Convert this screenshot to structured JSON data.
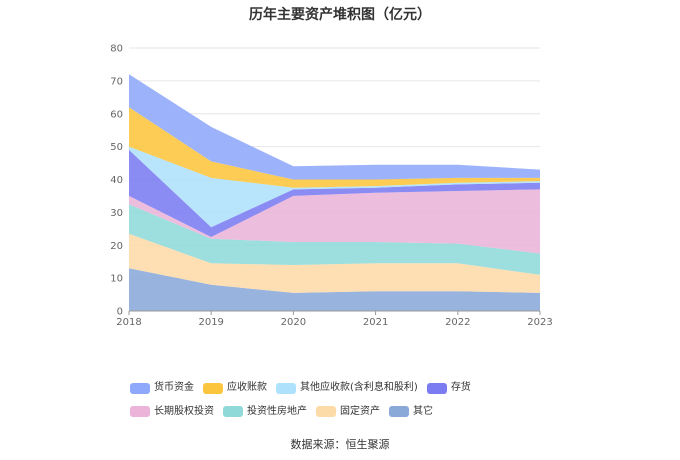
{
  "chart_data": {
    "type": "area",
    "stacked": true,
    "title": "历年主要资产堆积图（亿元）",
    "categories": [
      "2018",
      "2019",
      "2020",
      "2021",
      "2022",
      "2023"
    ],
    "ylim": [
      0,
      80
    ],
    "yticks": [
      "0",
      "10",
      "20",
      "30",
      "40",
      "50",
      "60",
      "70",
      "80"
    ],
    "grid": true,
    "legend_position": "bottom",
    "series": [
      {
        "name": "其它",
        "color": "#8aa9d9",
        "values": [
          13.0,
          8.0,
          5.5,
          6.0,
          6.0,
          5.5
        ]
      },
      {
        "name": "固定资产",
        "color": "#fddba8",
        "values": [
          10.5,
          6.5,
          8.5,
          8.5,
          8.5,
          5.5
        ]
      },
      {
        "name": "投资性房地产",
        "color": "#8fd9d9",
        "values": [
          9.0,
          7.5,
          7.0,
          6.5,
          6.0,
          6.5
        ]
      },
      {
        "name": "长期股权投资",
        "color": "#ebb4d8",
        "values": [
          2.5,
          0.5,
          14.0,
          15.0,
          16.0,
          19.5
        ]
      },
      {
        "name": "存货",
        "color": "#7b7bf2",
        "values": [
          14.0,
          3.0,
          2.0,
          1.5,
          2.0,
          2.0
        ]
      },
      {
        "name": "其他应收款(含利息和股利)",
        "color": "#aee1fb",
        "values": [
          1.0,
          15.0,
          0.5,
          0.5,
          0.5,
          0.5
        ]
      },
      {
        "name": "应收账款",
        "color": "#fcc53e",
        "values": [
          12.0,
          5.0,
          2.5,
          2.0,
          1.5,
          1.0
        ]
      },
      {
        "name": "货币资金",
        "color": "#8ea8fb",
        "values": [
          10.0,
          10.5,
          4.0,
          4.5,
          4.0,
          2.5
        ]
      }
    ],
    "legend_order": [
      "货币资金",
      "应收账款",
      "其他应收款(含利息和股利)",
      "存货",
      "长期股权投资",
      "投资性房地产",
      "固定资产",
      "其它"
    ]
  },
  "footer": {
    "source": "数据来源：恒生聚源"
  }
}
